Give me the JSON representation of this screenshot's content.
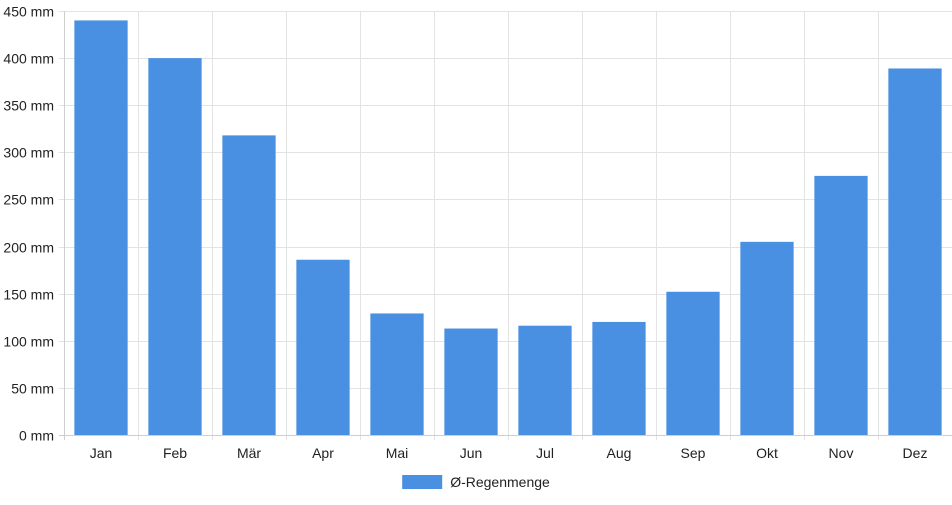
{
  "chart_data": {
    "type": "bar",
    "categories": [
      "Jan",
      "Feb",
      "Mär",
      "Apr",
      "Mai",
      "Jun",
      "Jul",
      "Aug",
      "Sep",
      "Okt",
      "Nov",
      "Dez"
    ],
    "series": [
      {
        "name": "Ø-Regenmenge",
        "values": [
          440,
          400,
          318,
          186,
          129,
          113,
          116,
          120,
          152,
          205,
          275,
          389
        ],
        "color": "#4a90e2"
      }
    ],
    "y_unit": "mm",
    "ylim": [
      0,
      450
    ],
    "yticks": [
      0,
      50,
      100,
      150,
      200,
      250,
      300,
      350,
      400,
      450
    ],
    "ytick_labels": [
      "0 mm",
      "50 mm",
      "100 mm",
      "150 mm",
      "200 mm",
      "250 mm",
      "300 mm",
      "350 mm",
      "400 mm",
      "450 mm"
    ],
    "grid": true,
    "legend_position": "bottom-center"
  },
  "legend": {
    "label": "Ø-Regenmenge"
  }
}
